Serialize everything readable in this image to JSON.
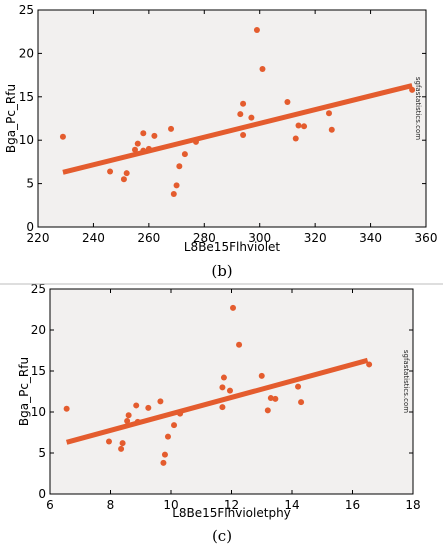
{
  "chart_data": [
    {
      "type": "scatter",
      "panel_label": "(b)",
      "xlabel": "L8Be15Flhviolet",
      "ylabel": "Bga_Pc_Rfu",
      "watermark": "sgfastatistics.com",
      "xlim": [
        220,
        360
      ],
      "ylim": [
        0,
        25
      ],
      "xticks": [
        220,
        240,
        260,
        280,
        300,
        320,
        340,
        360
      ],
      "yticks": [
        0,
        5,
        10,
        15,
        20,
        25
      ],
      "grid": false,
      "colors": {
        "points": "#e45c2e",
        "line": "#e45c2e",
        "background": "#f2f0ef"
      },
      "points": [
        {
          "x": 229,
          "y": 10.4
        },
        {
          "x": 246,
          "y": 6.4
        },
        {
          "x": 251,
          "y": 5.5
        },
        {
          "x": 252,
          "y": 6.2
        },
        {
          "x": 255,
          "y": 8.9
        },
        {
          "x": 256,
          "y": 9.6
        },
        {
          "x": 258,
          "y": 10.8
        },
        {
          "x": 258,
          "y": 8.8
        },
        {
          "x": 260,
          "y": 9.0
        },
        {
          "x": 262,
          "y": 10.5
        },
        {
          "x": 268,
          "y": 11.3
        },
        {
          "x": 269,
          "y": 3.8
        },
        {
          "x": 270,
          "y": 4.8
        },
        {
          "x": 271,
          "y": 7.0
        },
        {
          "x": 273,
          "y": 8.4
        },
        {
          "x": 277,
          "y": 9.8
        },
        {
          "x": 293,
          "y": 13.0
        },
        {
          "x": 294,
          "y": 14.2
        },
        {
          "x": 294,
          "y": 10.6
        },
        {
          "x": 297,
          "y": 12.6
        },
        {
          "x": 299,
          "y": 22.7
        },
        {
          "x": 301,
          "y": 18.2
        },
        {
          "x": 310,
          "y": 14.4
        },
        {
          "x": 313,
          "y": 10.2
        },
        {
          "x": 314,
          "y": 11.7
        },
        {
          "x": 316,
          "y": 11.6
        },
        {
          "x": 325,
          "y": 13.1
        },
        {
          "x": 326,
          "y": 11.2
        },
        {
          "x": 355,
          "y": 15.8
        }
      ],
      "fit_line": {
        "x": [
          229,
          355
        ],
        "y": [
          6.3,
          16.3
        ]
      }
    },
    {
      "type": "scatter",
      "panel_label": "(c)",
      "xlabel": "L8Be15Flhvioletphy",
      "ylabel": "Bga_Pc_Rfu",
      "watermark": "sgfastatistics.com",
      "xlim": [
        6,
        18
      ],
      "ylim": [
        0,
        25
      ],
      "xticks": [
        6,
        8,
        10,
        12,
        14,
        16,
        18
      ],
      "yticks": [
        0,
        5,
        10,
        15,
        20,
        25
      ],
      "grid": false,
      "colors": {
        "points": "#e45c2e",
        "line": "#e45c2e",
        "background": "#f2f0ef"
      },
      "points": [
        {
          "x": 6.55,
          "y": 10.4
        },
        {
          "x": 7.95,
          "y": 6.4
        },
        {
          "x": 8.35,
          "y": 5.5
        },
        {
          "x": 8.4,
          "y": 6.2
        },
        {
          "x": 8.55,
          "y": 8.9
        },
        {
          "x": 8.6,
          "y": 9.6
        },
        {
          "x": 8.85,
          "y": 10.8
        },
        {
          "x": 8.9,
          "y": 8.8
        },
        {
          "x": 9.25,
          "y": 10.5
        },
        {
          "x": 9.65,
          "y": 11.3
        },
        {
          "x": 9.75,
          "y": 3.8
        },
        {
          "x": 9.8,
          "y": 4.8
        },
        {
          "x": 9.9,
          "y": 7.0
        },
        {
          "x": 10.1,
          "y": 8.4
        },
        {
          "x": 10.3,
          "y": 9.8
        },
        {
          "x": 11.7,
          "y": 13.0
        },
        {
          "x": 11.75,
          "y": 14.2
        },
        {
          "x": 11.7,
          "y": 10.6
        },
        {
          "x": 11.95,
          "y": 12.6
        },
        {
          "x": 12.05,
          "y": 22.7
        },
        {
          "x": 12.25,
          "y": 18.2
        },
        {
          "x": 13.0,
          "y": 14.4
        },
        {
          "x": 13.2,
          "y": 10.2
        },
        {
          "x": 13.3,
          "y": 11.7
        },
        {
          "x": 13.45,
          "y": 11.6
        },
        {
          "x": 14.2,
          "y": 13.1
        },
        {
          "x": 14.3,
          "y": 11.2
        },
        {
          "x": 16.55,
          "y": 15.8
        }
      ],
      "fit_line": {
        "x": [
          6.55,
          16.5
        ],
        "y": [
          6.3,
          16.3
        ]
      }
    }
  ]
}
